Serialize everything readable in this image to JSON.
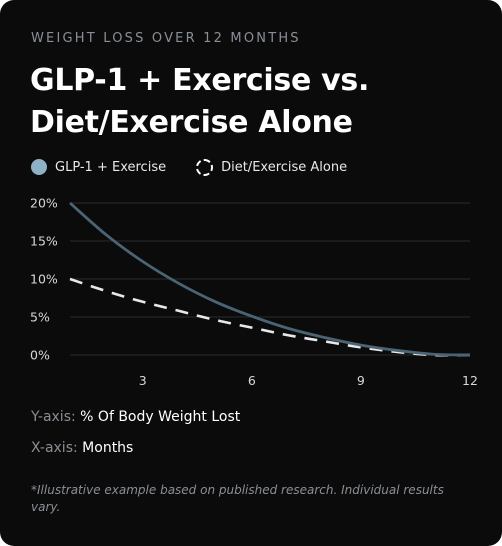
{
  "eyebrow": "WEIGHT LOSS OVER 12 MONTHS",
  "title": "GLP-1 + Exercise vs. Diet/Exercise Alone",
  "legend": {
    "series_a": "GLP-1 + Exercise",
    "series_b": "Diet/Exercise Alone"
  },
  "axis_notes": {
    "y_key": "Y-axis:",
    "y_value": "% Of Body Weight Lost",
    "x_key": "X-axis:",
    "x_value": "Months"
  },
  "footnote": "*Illustrative example based on published research. Individual results vary.",
  "colors": {
    "series_a": "#4a6474",
    "series_a_swatch": "#8fb1c6",
    "series_b": "#e8e8ea",
    "grid": "#2a2b2e"
  },
  "chart_data": {
    "type": "line",
    "xlabel": "Months",
    "ylabel": "% Of Body Weight Lost",
    "xlim": [
      1,
      12
    ],
    "ylim": [
      0,
      20
    ],
    "x_ticks": [
      3,
      6,
      9,
      12
    ],
    "y_ticks": [
      0,
      5,
      10,
      15,
      20
    ],
    "y_tick_labels": [
      "0%",
      "5%",
      "10%",
      "15%",
      "20%"
    ],
    "grid": true,
    "legend_position": "top-left",
    "series": [
      {
        "name": "GLP-1 + Exercise",
        "style": "solid",
        "x": [
          1,
          2,
          3,
          4,
          5,
          6,
          7,
          8,
          9,
          10,
          11,
          12
        ],
        "y": [
          20,
          15.8,
          12.3,
          9.4,
          7.0,
          5.1,
          3.5,
          2.3,
          1.3,
          0.6,
          0.1,
          0
        ]
      },
      {
        "name": "Diet/Exercise Alone",
        "style": "dashed",
        "x": [
          1,
          2,
          3,
          4,
          5,
          6,
          7,
          8,
          9,
          10,
          11,
          12
        ],
        "y": [
          10,
          8.4,
          7.0,
          5.8,
          4.6,
          3.6,
          2.6,
          1.8,
          1.0,
          0.4,
          0,
          0
        ]
      }
    ]
  }
}
